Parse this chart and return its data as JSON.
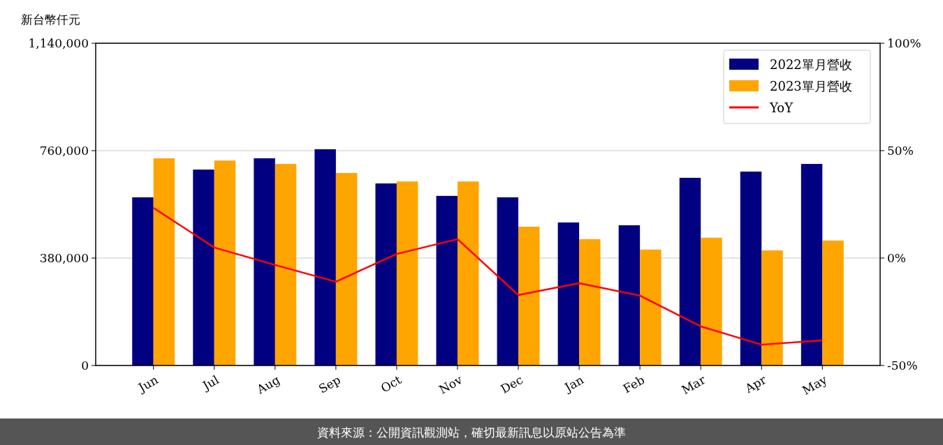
{
  "chart_data": {
    "type": "bar",
    "ylabel": "新台幣仟元",
    "annotations": [
      "資料來源：公開資訊觀測站，確切最新訊息以原站公告為準"
    ],
    "categories": [
      "Jun",
      "Jul",
      "Aug",
      "Sep",
      "Oct",
      "Nov",
      "Dec",
      "Jan",
      "Feb",
      "Mar",
      "Apr",
      "May"
    ],
    "series": [
      {
        "name": "2022單月營收",
        "color": "#000080",
        "values": [
          595000,
          693000,
          733000,
          765000,
          644000,
          600000,
          595000,
          506000,
          496000,
          664000,
          686000,
          713000
        ]
      },
      {
        "name": "2023單月營收",
        "color": "#ffa500",
        "values": [
          733000,
          725000,
          713000,
          681000,
          651000,
          651000,
          491000,
          447000,
          410000,
          452000,
          407000,
          442000
        ]
      },
      {
        "name": "YoY",
        "type": "line",
        "axis": "y2",
        "color": "#ff0000",
        "values": [
          23.4,
          4.9,
          -3.2,
          -11.0,
          1.9,
          8.8,
          -17.2,
          -11.7,
          -17.5,
          -31.8,
          -40.3,
          -38.3
        ]
      }
    ],
    "ylim": [
      0,
      1140000
    ],
    "yticks": [
      {
        "value": 0,
        "label": "0"
      },
      {
        "value": 380000,
        "label": "380,000"
      },
      {
        "value": 760000,
        "label": "760,000"
      },
      {
        "value": 1140000,
        "label": "1,140,000"
      }
    ],
    "y2lim": [
      -50,
      100
    ],
    "y2ticks": [
      {
        "value": -50,
        "label": "-50%"
      },
      {
        "value": 0,
        "label": "0%"
      },
      {
        "value": 50,
        "label": "50%"
      },
      {
        "value": 100,
        "label": "100%"
      }
    ],
    "grid": "y",
    "legend": "top right",
    "marker": "none",
    "line_style": "solid"
  }
}
